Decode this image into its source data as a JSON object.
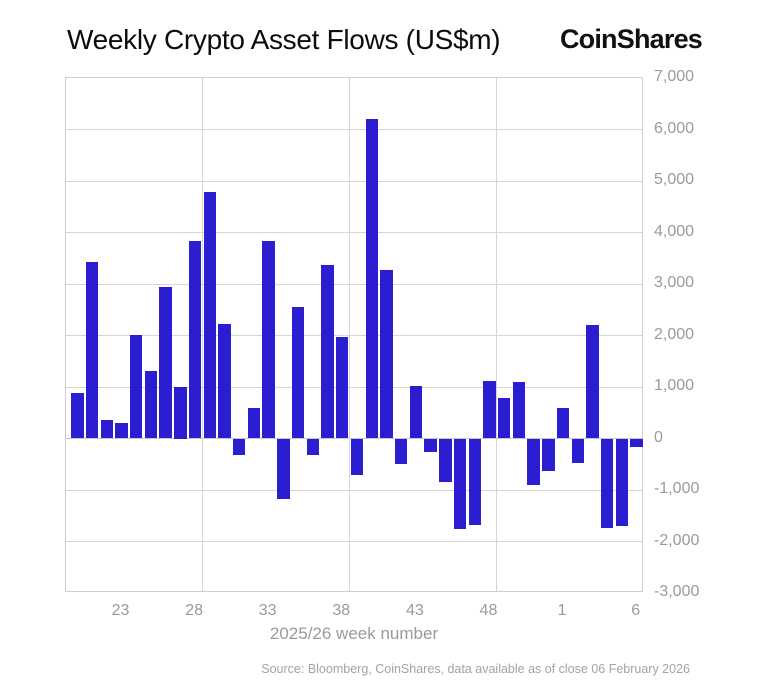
{
  "header": {
    "title": "Weekly Crypto Asset Flows (US$m)",
    "logo": "CoinShares"
  },
  "chart_data": {
    "type": "bar",
    "title": "Weekly Crypto Asset Flows (US$m)",
    "xlabel": "2025/26 week number",
    "ylabel": "",
    "ylim": [
      -3000,
      7000
    ],
    "y_tick_step": 1000,
    "y_tick_labels": [
      "7,000",
      "6,000",
      "5,000",
      "4,000",
      "3,000",
      "2,000",
      "1,000",
      "0",
      "-1,000",
      "-2,000",
      "-3,000"
    ],
    "grid": true,
    "legend": "none",
    "bar_color": "#2a1ed0",
    "categories": [
      20,
      21,
      22,
      23,
      24,
      25,
      26,
      27,
      28,
      29,
      30,
      31,
      32,
      33,
      34,
      35,
      36,
      37,
      38,
      39,
      40,
      41,
      42,
      43,
      44,
      45,
      46,
      47,
      48,
      49,
      50,
      51,
      52,
      1,
      2,
      3,
      4,
      5,
      6
    ],
    "values": [
      880,
      3420,
      350,
      300,
      2010,
      1320,
      2940,
      1000,
      3830,
      4780,
      2230,
      -320,
      600,
      3830,
      -1180,
      2560,
      -330,
      3360,
      1970,
      -700,
      6200,
      3270,
      -500,
      1020,
      -260,
      -850,
      -1760,
      -1680,
      1120,
      780,
      1090,
      -910,
      -630,
      590,
      -470,
      2200,
      -1730,
      -1700,
      -160
    ],
    "x_ticks_shown": [
      "23",
      "28",
      "33",
      "38",
      "43",
      "48",
      "1",
      "6"
    ],
    "vertical_gridlines_after_weeks": [
      28,
      38,
      48
    ]
  },
  "footer": {
    "source": "Source: Bloomberg, CoinShares, data available as of close 06 February 2026"
  }
}
